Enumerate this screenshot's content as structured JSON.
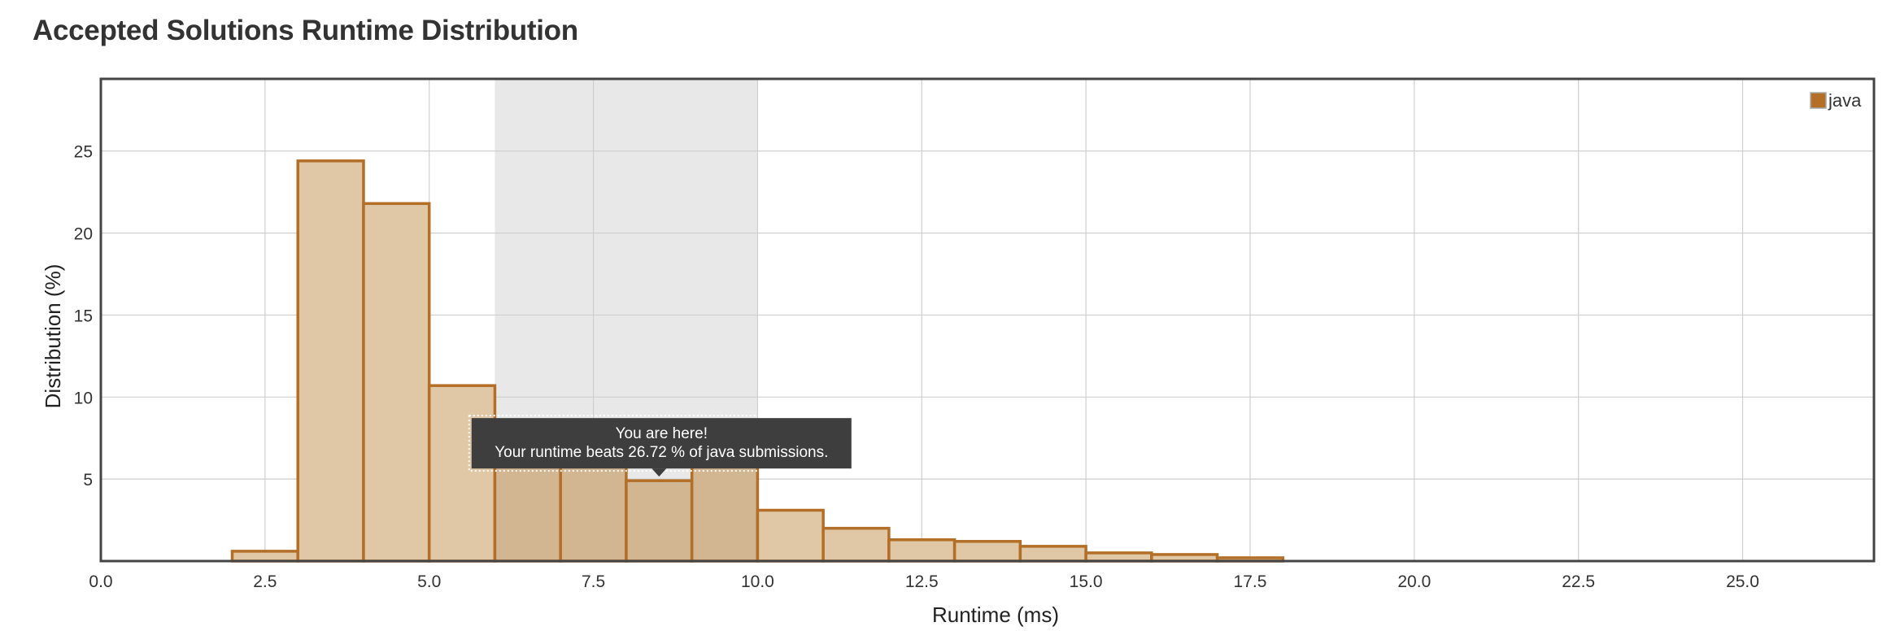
{
  "page": {
    "title": "Accepted Solutions Runtime Distribution"
  },
  "chart_data": {
    "type": "bar",
    "title": "Accepted Solutions Runtime Distribution",
    "xlabel": "Runtime (ms)",
    "ylabel": "Distribution (%)",
    "xlim": [
      0.0,
      27.0
    ],
    "ylim": [
      0,
      29.4
    ],
    "x_ticks": [
      "0.0",
      "2.5",
      "5.0",
      "7.5",
      "10.0",
      "12.5",
      "15.0",
      "17.5",
      "20.0",
      "22.5",
      "25.0"
    ],
    "y_ticks": [
      "5",
      "10",
      "15",
      "20",
      "25"
    ],
    "grid": true,
    "legend_position": "top-right",
    "highlight_range": [
      6,
      10
    ],
    "series": [
      {
        "name": "java",
        "color": "#b36f27",
        "fill": "#e0c7a6",
        "bins": [
          {
            "x0": 2,
            "x1": 3,
            "value": 0.6
          },
          {
            "x0": 3,
            "x1": 4,
            "value": 24.4
          },
          {
            "x0": 4,
            "x1": 5,
            "value": 21.8
          },
          {
            "x0": 5,
            "x1": 6,
            "value": 10.7
          },
          {
            "x0": 6,
            "x1": 7,
            "value": 8.2
          },
          {
            "x0": 7,
            "x1": 8,
            "value": 7.2
          },
          {
            "x0": 8,
            "x1": 9,
            "value": 4.9
          },
          {
            "x0": 9,
            "x1": 10,
            "value": 5.8
          },
          {
            "x0": 10,
            "x1": 11,
            "value": 3.1
          },
          {
            "x0": 11,
            "x1": 12,
            "value": 2.0
          },
          {
            "x0": 12,
            "x1": 13,
            "value": 1.3
          },
          {
            "x0": 13,
            "x1": 14,
            "value": 1.2
          },
          {
            "x0": 14,
            "x1": 15,
            "value": 0.9
          },
          {
            "x0": 15,
            "x1": 16,
            "value": 0.5
          },
          {
            "x0": 16,
            "x1": 17,
            "value": 0.4
          },
          {
            "x0": 17,
            "x1": 18,
            "value": 0.2
          }
        ]
      }
    ],
    "tooltip": {
      "line1": "You are here!",
      "line2": "Your runtime beats 26.72 % of java submissions.",
      "anchor_x": 8.5,
      "anchor_y": 4.9
    }
  }
}
